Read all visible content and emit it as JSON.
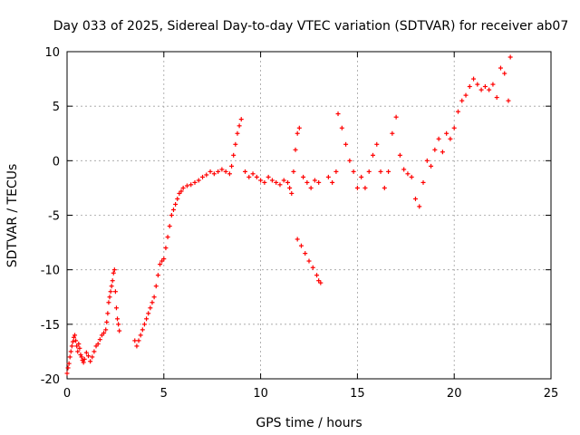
{
  "chart_data": {
    "type": "scatter",
    "title": "Day 033 of 2025, Sidereal Day-to-day VTEC variation (SDTVAR) for receiver ab07",
    "xlabel": "GPS time / hours",
    "ylabel": "SDTVAR / TECUs",
    "xlim": [
      0,
      25
    ],
    "ylim": [
      -20,
      10
    ],
    "xticks": [
      0,
      5,
      10,
      15,
      20,
      25
    ],
    "yticks": [
      -20,
      -15,
      -10,
      -5,
      0,
      5,
      10
    ],
    "grid": true,
    "marker": "+",
    "marker_color": "#ff0000",
    "series": [
      {
        "x": [
          0.0,
          0.05,
          0.1,
          0.15,
          0.2,
          0.25,
          0.3,
          0.35,
          0.4,
          0.45,
          0.5,
          0.55,
          0.6,
          0.65,
          0.7,
          0.75,
          0.8,
          0.85,
          0.9,
          1.0,
          1.1,
          1.2,
          1.3,
          1.4,
          1.5,
          1.6,
          1.7,
          1.8,
          1.9,
          2.0,
          2.05,
          2.1,
          2.15,
          2.2,
          2.25,
          2.3,
          2.35,
          2.4,
          2.45,
          2.5,
          2.55,
          2.6,
          2.65,
          2.7,
          3.5,
          3.6,
          3.7,
          3.8,
          3.9,
          4.0,
          4.1,
          4.2,
          4.3,
          4.4,
          4.5,
          4.6,
          4.7,
          4.8,
          4.9,
          5.0,
          5.1,
          5.2,
          5.3,
          5.4,
          5.5,
          5.6,
          5.7,
          5.8,
          5.9,
          6.0,
          6.2,
          6.4,
          6.6,
          6.8,
          7.0,
          7.2,
          7.4,
          7.6,
          7.8,
          8.0,
          8.2,
          8.4,
          8.5,
          8.6,
          8.7,
          8.8,
          8.9,
          9.0,
          9.2,
          9.4,
          9.6,
          9.8,
          10.0,
          10.2,
          10.4,
          10.6,
          10.8,
          11.0,
          11.2,
          11.4,
          11.5,
          11.6,
          11.7,
          11.8,
          11.9,
          12.0,
          12.2,
          12.4,
          12.6,
          12.8,
          13.0,
          11.9,
          12.1,
          12.3,
          12.5,
          12.7,
          12.9,
          13.0,
          13.1,
          13.5,
          13.7,
          13.9,
          14.0,
          14.2,
          14.4,
          14.6,
          14.8,
          15.0,
          15.2,
          15.4,
          15.6,
          15.8,
          16.0,
          16.2,
          16.4,
          16.6,
          16.8,
          17.0,
          17.2,
          17.4,
          17.6,
          17.8,
          18.0,
          18.2,
          18.4,
          18.6,
          18.8,
          19.0,
          19.2,
          19.4,
          19.6,
          19.8,
          20.0,
          20.2,
          20.4,
          20.6,
          20.8,
          21.0,
          21.2,
          21.4,
          21.6,
          21.8,
          22.0,
          22.2,
          22.4,
          22.6,
          22.8,
          22.9
        ],
        "y": [
          -19.5,
          -19.0,
          -18.6,
          -18.0,
          -17.5,
          -17.0,
          -16.6,
          -16.2,
          -16.0,
          -16.5,
          -17.0,
          -17.5,
          -16.8,
          -17.2,
          -17.8,
          -18.0,
          -18.3,
          -18.5,
          -18.2,
          -17.6,
          -17.9,
          -18.4,
          -18.0,
          -17.5,
          -17.0,
          -16.8,
          -16.4,
          -16.0,
          -15.8,
          -15.5,
          -14.8,
          -14.0,
          -13.0,
          -12.5,
          -12.0,
          -11.5,
          -11.0,
          -10.3,
          -10.0,
          -12.0,
          -13.5,
          -14.5,
          -15.0,
          -15.6,
          -16.5,
          -17.0,
          -16.5,
          -16.0,
          -15.5,
          -15.0,
          -14.5,
          -14.0,
          -13.5,
          -13.0,
          -12.5,
          -11.5,
          -10.5,
          -9.5,
          -9.2,
          -9.0,
          -8.0,
          -7.0,
          -6.0,
          -5.0,
          -4.5,
          -4.0,
          -3.5,
          -3.0,
          -2.8,
          -2.5,
          -2.3,
          -2.2,
          -2.0,
          -1.8,
          -1.5,
          -1.3,
          -1.0,
          -1.2,
          -1.0,
          -0.8,
          -1.0,
          -1.2,
          -0.5,
          0.5,
          1.5,
          2.5,
          3.2,
          3.8,
          -1.0,
          -1.5,
          -1.2,
          -1.5,
          -1.8,
          -2.0,
          -1.5,
          -1.8,
          -2.0,
          -2.2,
          -1.8,
          -2.0,
          -2.5,
          -3.0,
          -1.0,
          1.0,
          2.5,
          3.0,
          -1.5,
          -2.0,
          -2.5,
          -1.8,
          -2.0,
          -7.2,
          -7.8,
          -8.5,
          -9.2,
          -9.8,
          -10.5,
          -11.0,
          -11.2,
          -1.5,
          -2.0,
          -1.0,
          4.3,
          3.0,
          1.5,
          0.0,
          -1.0,
          -2.5,
          -1.5,
          -2.5,
          -1.0,
          0.5,
          1.5,
          -1.0,
          -2.5,
          -1.0,
          2.5,
          4.0,
          0.5,
          -0.8,
          -1.2,
          -1.5,
          -3.5,
          -4.2,
          -2.0,
          0.0,
          -0.5,
          1.0,
          2.0,
          0.8,
          2.5,
          2.0,
          3.0,
          4.5,
          5.5,
          6.0,
          6.8,
          7.5,
          7.0,
          6.5,
          6.8,
          6.5,
          7.0,
          5.8,
          8.5,
          8.0,
          5.5,
          9.5
        ]
      }
    ]
  }
}
